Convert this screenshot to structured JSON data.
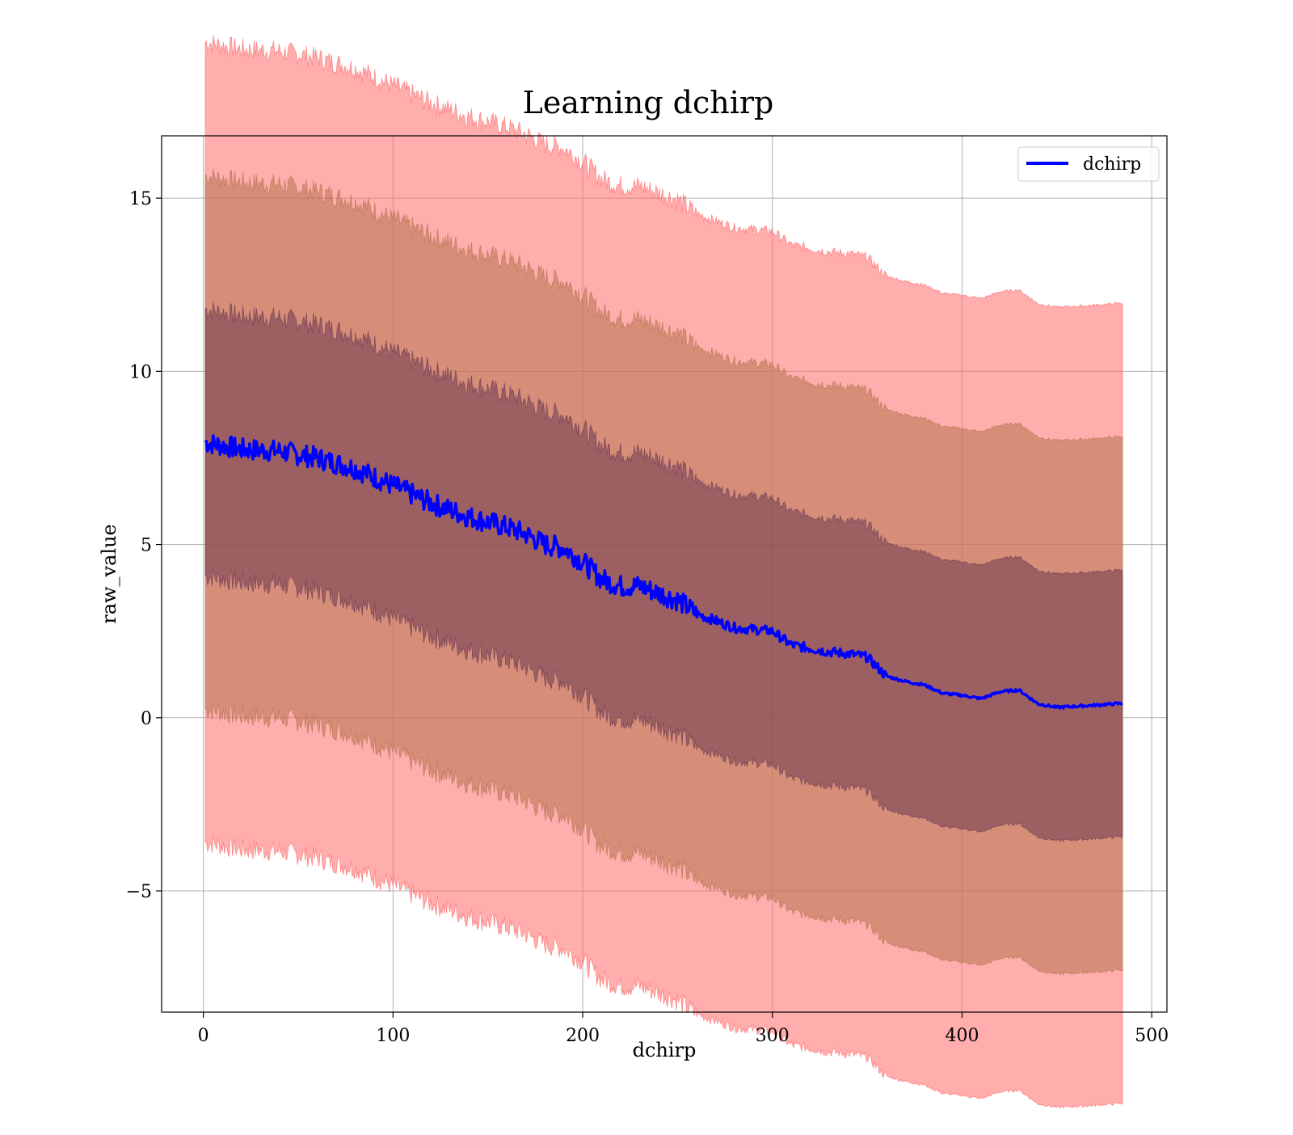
{
  "chart_data": {
    "type": "area",
    "title": "Learning dchirp",
    "xlabel": "dchirp",
    "ylabel": "raw_value",
    "xlim": [
      -22,
      508
    ],
    "ylim": [
      -8.5,
      16.8
    ],
    "xticks": [
      0,
      100,
      200,
      300,
      400,
      500
    ],
    "xtick_labels": [
      "0",
      "100",
      "200",
      "300",
      "400",
      "500"
    ],
    "yticks": [
      -5,
      0,
      5,
      10,
      15
    ],
    "ytick_labels": [
      "−5",
      "0",
      "5",
      "10",
      "15"
    ],
    "grid": true,
    "legend": {
      "location": "upper right",
      "entries": [
        "dchirp"
      ]
    },
    "colors": {
      "line": "#0000ff",
      "band": "#ff0000",
      "band_overlap": "#7a5a4a"
    },
    "band_alpha": 0.3,
    "band_sigmas": [
      1,
      2,
      3
    ],
    "x": [
      1,
      20,
      40,
      60,
      80,
      100,
      120,
      140,
      160,
      170,
      180,
      190,
      200,
      210,
      220,
      230,
      240,
      250,
      260,
      270,
      280,
      290,
      300,
      310,
      320,
      330,
      340,
      350,
      360,
      370,
      380,
      390,
      400,
      410,
      420,
      430,
      440,
      450,
      460,
      470,
      485
    ],
    "series": [
      {
        "name": "dchirp",
        "values": [
          7.95,
          7.75,
          7.7,
          7.5,
          7.2,
          6.7,
          6.2,
          5.8,
          5.5,
          5.3,
          5.0,
          4.9,
          4.5,
          4.0,
          3.8,
          3.8,
          3.6,
          3.4,
          3.0,
          2.8,
          2.6,
          2.55,
          2.5,
          2.1,
          2.0,
          1.9,
          1.85,
          1.75,
          1.2,
          1.05,
          0.95,
          0.7,
          0.65,
          0.55,
          0.75,
          0.8,
          0.4,
          0.3,
          0.33,
          0.36,
          0.42
        ]
      }
    ],
    "std": [
      3.85,
      3.85,
      3.85,
      3.85,
      3.85,
      3.85,
      3.85,
      3.85,
      3.85,
      3.85,
      3.85,
      3.85,
      3.85,
      3.85,
      3.85,
      3.85,
      3.85,
      3.85,
      3.85,
      3.85,
      3.85,
      3.85,
      3.85,
      3.85,
      3.85,
      3.85,
      3.85,
      3.85,
      3.85,
      3.85,
      3.85,
      3.85,
      3.85,
      3.85,
      3.85,
      3.85,
      3.85,
      3.85,
      3.85,
      3.85,
      3.85
    ],
    "band_edge_jitter": 0.35
  }
}
